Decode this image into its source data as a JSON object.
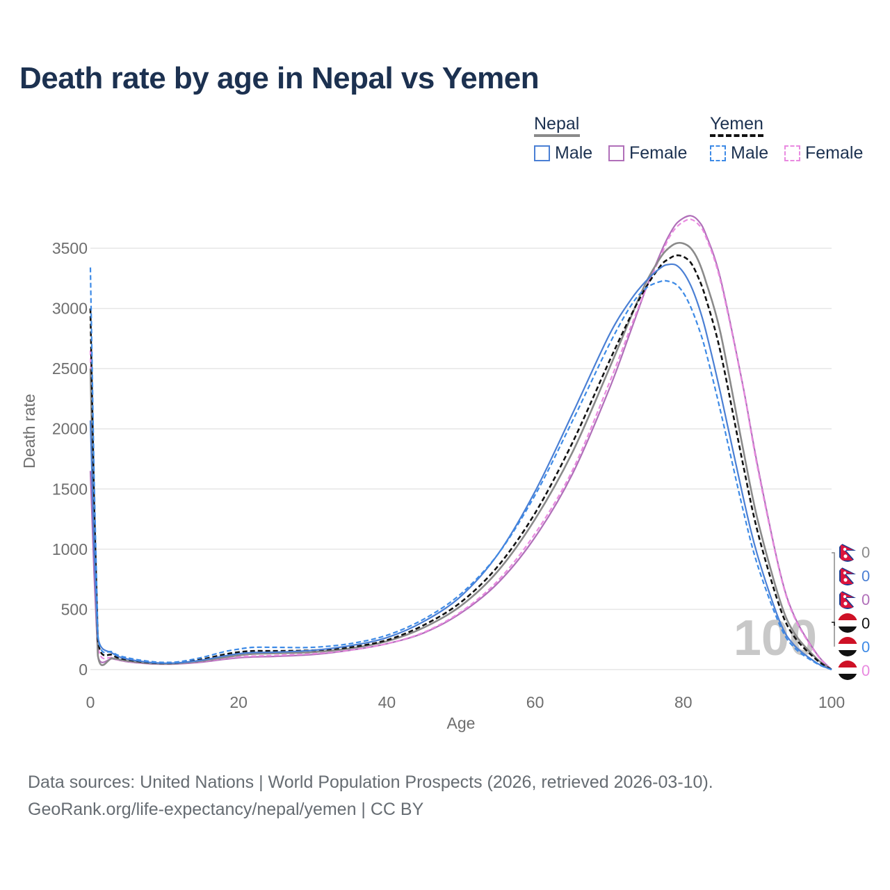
{
  "title": "Death rate by age in Nepal vs Yemen",
  "source_line1": "Data sources: United Nations | World Population Prospects (2026, retrieved 2026-03-10).",
  "source_line2": "GeoRank.org/life-expectancy/nepal/yemen | CC BY",
  "legend": {
    "nepal": {
      "title": "Nepal",
      "male": "Male",
      "female": "Female"
    },
    "yemen": {
      "title": "Yemen",
      "male": "Male",
      "female": "Female"
    }
  },
  "colors": {
    "nepal_total": "#8a8a8a",
    "nepal_male": "#4a7fd4",
    "nepal_female": "#b06fb9",
    "yemen_total": "#111111",
    "yemen_male": "#3d8ae6",
    "yemen_female": "#e98ae0",
    "title": "#1c3150",
    "watermark": "#c8c8c8"
  },
  "watermark_age": "100",
  "end_labels": [
    {
      "country": "Nepal",
      "series": "Total",
      "value": "0",
      "flag": "nepal-flag-icon"
    },
    {
      "country": "Nepal",
      "series": "Male",
      "value": "0",
      "flag": "nepal-flag-icon"
    },
    {
      "country": "Nepal",
      "series": "Female",
      "value": "0",
      "flag": "nepal-flag-icon"
    },
    {
      "country": "Yemen",
      "series": "Total",
      "value": "0",
      "flag": "yemen-flag-icon"
    },
    {
      "country": "Yemen",
      "series": "Male",
      "value": "0",
      "flag": "yemen-flag-icon"
    },
    {
      "country": "Yemen",
      "series": "Female",
      "value": "0",
      "flag": "yemen-flag-icon"
    }
  ],
  "chart_data": {
    "type": "line",
    "title": "Death rate by age in Nepal vs Yemen",
    "xlabel": "Age",
    "ylabel": "Death rate",
    "xlim": [
      0,
      100
    ],
    "ylim": [
      0,
      3500
    ],
    "xticks": [
      0,
      20,
      40,
      60,
      80,
      100
    ],
    "yticks": [
      0,
      500,
      1000,
      1500,
      2000,
      2500,
      3000,
      3500
    ],
    "x": [
      0,
      0.5,
      1,
      3,
      5,
      8,
      10,
      12,
      15,
      18,
      20,
      22,
      25,
      30,
      35,
      40,
      45,
      50,
      55,
      60,
      65,
      70,
      73,
      75,
      77,
      78,
      79,
      80,
      81,
      82,
      83,
      85,
      88,
      90,
      93,
      95,
      98,
      100
    ],
    "series": [
      {
        "name": "Nepal Total",
        "country": "Nepal",
        "sex": "Total",
        "dash": false,
        "values": [
          2500,
          1200,
          120,
          95,
          72,
          52,
          48,
          52,
          72,
          100,
          118,
          130,
          135,
          145,
          175,
          235,
          350,
          530,
          820,
          1250,
          1800,
          2500,
          2940,
          3220,
          3430,
          3500,
          3540,
          3540,
          3500,
          3400,
          3230,
          2800,
          1850,
          1250,
          580,
          300,
          90,
          0
        ]
      },
      {
        "name": "Nepal Male",
        "country": "Nepal",
        "sex": "Male",
        "dash": false,
        "values": [
          2070,
          1000,
          270,
          135,
          88,
          60,
          53,
          57,
          78,
          112,
          132,
          142,
          145,
          160,
          198,
          265,
          400,
          610,
          960,
          1480,
          2120,
          2780,
          3080,
          3230,
          3340,
          3365,
          3360,
          3300,
          3190,
          3030,
          2820,
          2300,
          1450,
          950,
          400,
          200,
          55,
          0
        ]
      },
      {
        "name": "Nepal Female",
        "country": "Nepal",
        "sex": "Female",
        "dash": false,
        "values": [
          1650,
          800,
          115,
          90,
          65,
          48,
          45,
          48,
          62,
          85,
          98,
          105,
          110,
          125,
          160,
          215,
          305,
          470,
          720,
          1100,
          1620,
          2330,
          2830,
          3170,
          3470,
          3600,
          3700,
          3750,
          3770,
          3730,
          3620,
          3250,
          2370,
          1700,
          820,
          440,
          130,
          0
        ]
      },
      {
        "name": "Yemen Total",
        "country": "Yemen",
        "sex": "Total",
        "dash": true,
        "values": [
          3000,
          1400,
          250,
          120,
          82,
          58,
          52,
          57,
          85,
          125,
          145,
          155,
          155,
          160,
          185,
          245,
          370,
          560,
          860,
          1300,
          1880,
          2560,
          2950,
          3180,
          3360,
          3410,
          3440,
          3430,
          3380,
          3260,
          3090,
          2640,
          1720,
          1150,
          520,
          270,
          80,
          0
        ]
      },
      {
        "name": "Yemen Male",
        "country": "Yemen",
        "sex": "Male",
        "dash": true,
        "values": [
          3340,
          1600,
          290,
          145,
          98,
          68,
          60,
          66,
          100,
          148,
          170,
          185,
          185,
          185,
          215,
          285,
          420,
          630,
          960,
          1450,
          2060,
          2700,
          3030,
          3170,
          3225,
          3225,
          3200,
          3130,
          3010,
          2850,
          2650,
          2150,
          1340,
          870,
          370,
          180,
          50,
          0
        ]
      },
      {
        "name": "Yemen Female",
        "country": "Yemen",
        "sex": "Female",
        "dash": true,
        "values": [
          2650,
          1200,
          200,
          98,
          68,
          50,
          46,
          50,
          68,
          92,
          106,
          112,
          118,
          132,
          162,
          215,
          310,
          480,
          740,
          1130,
          1650,
          2380,
          2860,
          3170,
          3440,
          3580,
          3670,
          3720,
          3740,
          3700,
          3600,
          3230,
          2360,
          1680,
          810,
          430,
          125,
          0
        ]
      }
    ]
  }
}
